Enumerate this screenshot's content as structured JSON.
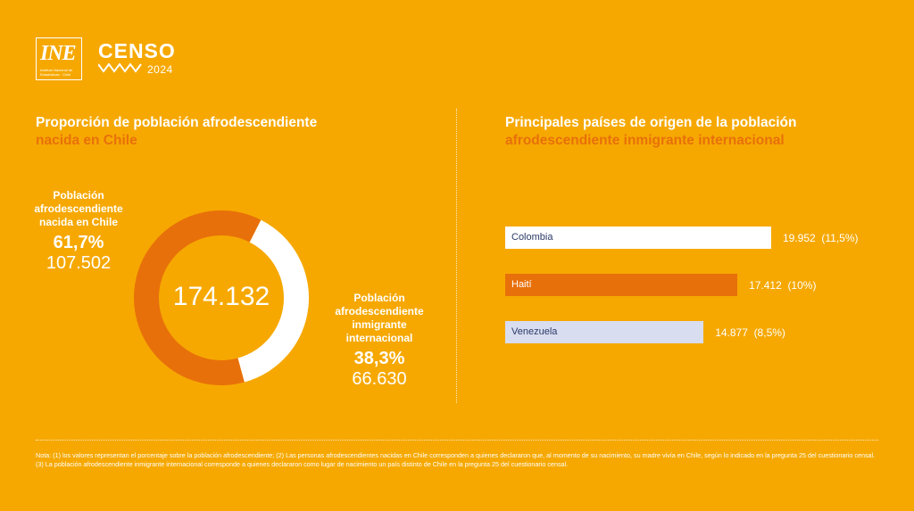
{
  "brand": {
    "ine_mark": "INE",
    "ine_subtitle": "Instituto Nacional de Estadísticas · Chile",
    "censo": "CENSO",
    "censo_year": "2024"
  },
  "left": {
    "title_line1": "Proporción de población afrodescendiente",
    "title_line2": "nacida en Chile",
    "center_total": "174.132",
    "chile_label_lines": [
      "Población",
      "afrodescendiente",
      "nacida en Chile"
    ],
    "chile_pct": "61,7%",
    "chile_count": "107.502",
    "immigrant_label_lines": [
      "Población",
      "afrodescendiente",
      "inmigrante",
      "internacional"
    ],
    "immigrant_pct": "38,3%",
    "immigrant_count": "66.630"
  },
  "right": {
    "title_line1": "Principales países de origen de la población",
    "title_line2": "afrodescendiente inmigrante internacional"
  },
  "chart_data": [
    {
      "type": "pie",
      "subtype": "donut",
      "title": "Proporción de población afrodescendiente nacida en Chile",
      "total": 174132,
      "categories": [
        "Población afrodescendiente nacida en Chile",
        "Población afrodescendiente inmigrante internacional"
      ],
      "values": [
        107502,
        66630
      ],
      "percent_labels": [
        "61,7%",
        "38,3%"
      ],
      "colors": [
        "#E8700A",
        "#FFFFFF"
      ]
    },
    {
      "type": "bar",
      "orientation": "horizontal",
      "title": "Principales países de origen de la población afrodescendiente inmigrante internacional",
      "categories": [
        "Colombia",
        "Haití",
        "Venezuela"
      ],
      "values": [
        19952,
        17412,
        14877
      ],
      "value_labels": [
        "19.952",
        "17.412",
        "14.877"
      ],
      "percent_labels": [
        "(11,5%)",
        "(10%)",
        "(8,5%)"
      ],
      "colors": [
        "#FFFFFF",
        "#E8700A",
        "#D9DDF0"
      ],
      "label_colors": [
        "#2B3A67",
        "#FFFFFF",
        "#2B3A67"
      ]
    }
  ],
  "note": "Nota: (1) los valores representan el porcentaje sobre la población afrodescendiente; (2) Las personas afrodescendientes nacidas en Chile corresponden a quienes declararon que, al momento de su nacimiento, su madre vivía en Chile, según lo indicado en la pregunta 25 del cuestionario censal. (3) La población afrodescendiente inmigrante internacional corresponde a quienes declararon como lugar de nacimiento un país distinto de Chile en la pregunta 25 del cuestionario censal."
}
